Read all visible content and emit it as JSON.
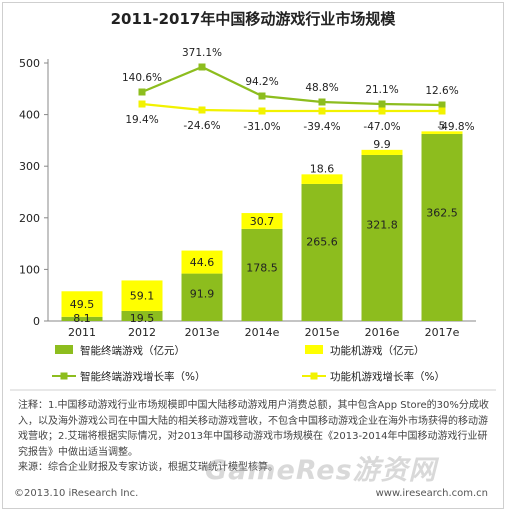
{
  "title": "2011-2017年中国移动游戏行业市场规模",
  "chart_data": {
    "type": "bar",
    "stacked": true,
    "categories": [
      "2011",
      "2012",
      "2013e",
      "2014e",
      "2015e",
      "2016e",
      "2017e"
    ],
    "series": [
      {
        "name": "智能终端游戏（亿元）",
        "values": [
          8.1,
          19.5,
          91.9,
          178.5,
          265.6,
          321.8,
          362.5
        ]
      },
      {
        "name": "功能机游戏（亿元）",
        "values": [
          49.5,
          59.1,
          44.6,
          30.7,
          18.6,
          9.9,
          5.0
        ]
      }
    ],
    "lines": [
      {
        "name": "智能终端游戏增长率（%）",
        "labels": [
          "",
          "140.6%",
          "371.1%",
          "94.2%",
          "48.8%",
          "21.1%",
          "12.6%"
        ]
      },
      {
        "name": "功能机游戏增长率（%）",
        "labels": [
          "",
          "19.4%",
          "-24.6%",
          "-31.0%",
          "-39.4%",
          "-47.0%",
          "-49.8%"
        ]
      }
    ],
    "yticks": [
      "0",
      "100",
      "200",
      "300",
      "400",
      "500"
    ],
    "ylim": [
      0,
      500
    ],
    "grid": false,
    "legend": "bottom"
  },
  "notes": [
    "注释：1.中国移动游戏行业市场规模即中国大陆移动游戏用户消费总额，其中包含App Store的30%分成收入，以及海外游戏公司在中国大陆的相关移动游戏营收，不包含中国移动游戏企业在海外市场获得的移动游戏营收；2.艾瑞将根据实际情况，对2013年中国移动游戏市场规模在《2013-2014年中国移动游戏行业研究报告》中做出适当调整。",
    "来源：综合企业财报及专家访谈，根据艾瑞统计模型核算。"
  ],
  "footer": {
    "left": "©2013.10 iResearch Inc.",
    "right": "www.iresearch.com.cn"
  },
  "watermark": "GameRes游资网",
  "colors": {
    "smart": "#8dbd1e",
    "feature": "#ffff00",
    "smart_line": "#8dbd1e",
    "feature_line": "#f2f200"
  }
}
